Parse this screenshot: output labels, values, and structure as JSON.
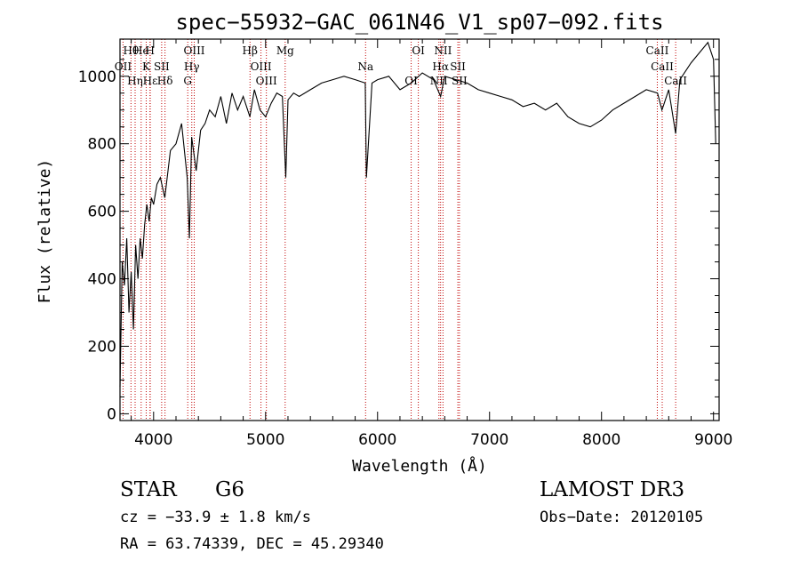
{
  "chart_data": {
    "type": "line",
    "title": "spec−55932−GAC_061N46_V1_sp07−092.fits",
    "xlabel": "Wavelength (Å)",
    "ylabel": "Flux (relative)",
    "xlim": [
      3700,
      9050
    ],
    "ylim": [
      -20,
      1110
    ],
    "xticks": [
      4000,
      5000,
      6000,
      7000,
      8000,
      9000
    ],
    "yticks": [
      0,
      200,
      400,
      600,
      800,
      1000
    ],
    "grid": false,
    "series": [
      {
        "name": "flux",
        "x": [
          3700,
          3720,
          3740,
          3760,
          3780,
          3800,
          3820,
          3840,
          3860,
          3880,
          3900,
          3920,
          3940,
          3960,
          3980,
          4000,
          4030,
          4060,
          4100,
          4150,
          4200,
          4250,
          4300,
          4320,
          4340,
          4380,
          4420,
          4460,
          4500,
          4550,
          4600,
          4650,
          4700,
          4750,
          4800,
          4860,
          4900,
          4950,
          5000,
          5050,
          5100,
          5150,
          5180,
          5200,
          5250,
          5300,
          5400,
          5500,
          5600,
          5700,
          5800,
          5890,
          5900,
          5950,
          6000,
          6100,
          6200,
          6300,
          6400,
          6500,
          6563,
          6600,
          6700,
          6800,
          6900,
          7000,
          7100,
          7200,
          7300,
          7400,
          7500,
          7600,
          7700,
          7800,
          7900,
          8000,
          8100,
          8200,
          8300,
          8400,
          8500,
          8540,
          8560,
          8600,
          8662,
          8700,
          8800,
          8900,
          8950,
          9000,
          9020
        ],
        "y": [
          80,
          450,
          380,
          520,
          300,
          420,
          250,
          500,
          400,
          520,
          460,
          560,
          620,
          570,
          640,
          620,
          680,
          700,
          640,
          780,
          800,
          860,
          700,
          520,
          820,
          720,
          840,
          860,
          900,
          880,
          940,
          860,
          950,
          900,
          940,
          880,
          960,
          900,
          880,
          920,
          950,
          940,
          700,
          930,
          950,
          940,
          960,
          980,
          990,
          1000,
          990,
          980,
          700,
          980,
          990,
          1000,
          960,
          980,
          1010,
          990,
          940,
          1000,
          990,
          980,
          960,
          950,
          940,
          930,
          910,
          920,
          900,
          920,
          880,
          860,
          850,
          870,
          900,
          920,
          940,
          960,
          950,
          900,
          920,
          960,
          830,
          990,
          1040,
          1080,
          1100,
          1050,
          800
        ]
      }
    ],
    "lines": [
      {
        "label": "Hθ",
        "wave": 3798
      },
      {
        "label": "OII",
        "wave": 3727
      },
      {
        "label": "Hη",
        "wave": 3835
      },
      {
        "label": "He",
        "wave": 3889
      },
      {
        "label": "K",
        "wave": 3934
      },
      {
        "label": "Hε",
        "wave": 3970
      },
      {
        "label": "H",
        "wave": 3968
      },
      {
        "label": "SII",
        "wave": 4072
      },
      {
        "label": "Hδ",
        "wave": 4102
      },
      {
        "label": "OIII",
        "wave": 4363
      },
      {
        "label": "Hγ",
        "wave": 4341
      },
      {
        "label": "G",
        "wave": 4305
      },
      {
        "label": "Hβ",
        "wave": 4861
      },
      {
        "label": "OIII",
        "wave": 4959
      },
      {
        "label": "OIII",
        "wave": 5007
      },
      {
        "label": "Mg",
        "wave": 5175
      },
      {
        "label": "Na",
        "wave": 5893
      },
      {
        "label": "OI",
        "wave": 6300
      },
      {
        "label": "OI",
        "wave": 6364
      },
      {
        "label": "Hα",
        "wave": 6563
      },
      {
        "label": "NII",
        "wave": 6548
      },
      {
        "label": "NII",
        "wave": 6584
      },
      {
        "label": "SII",
        "wave": 6717
      },
      {
        "label": "SII",
        "wave": 6731
      },
      {
        "label": "CaII",
        "wave": 8498
      },
      {
        "label": "CaII",
        "wave": 8542
      },
      {
        "label": "CaII",
        "wave": 8662
      }
    ]
  },
  "info": {
    "object_class": "STAR",
    "subclass": "G6",
    "survey": "LAMOST DR3",
    "redshift": "cz = −33.9 ± 1.8 km/s",
    "obs_date": "Obs−Date: 20120105",
    "coords": "RA =  63.74339, DEC =  45.29340"
  },
  "colors": {
    "axis": "#000000",
    "spectrum": "#000000",
    "line_marker": "#c00000"
  }
}
